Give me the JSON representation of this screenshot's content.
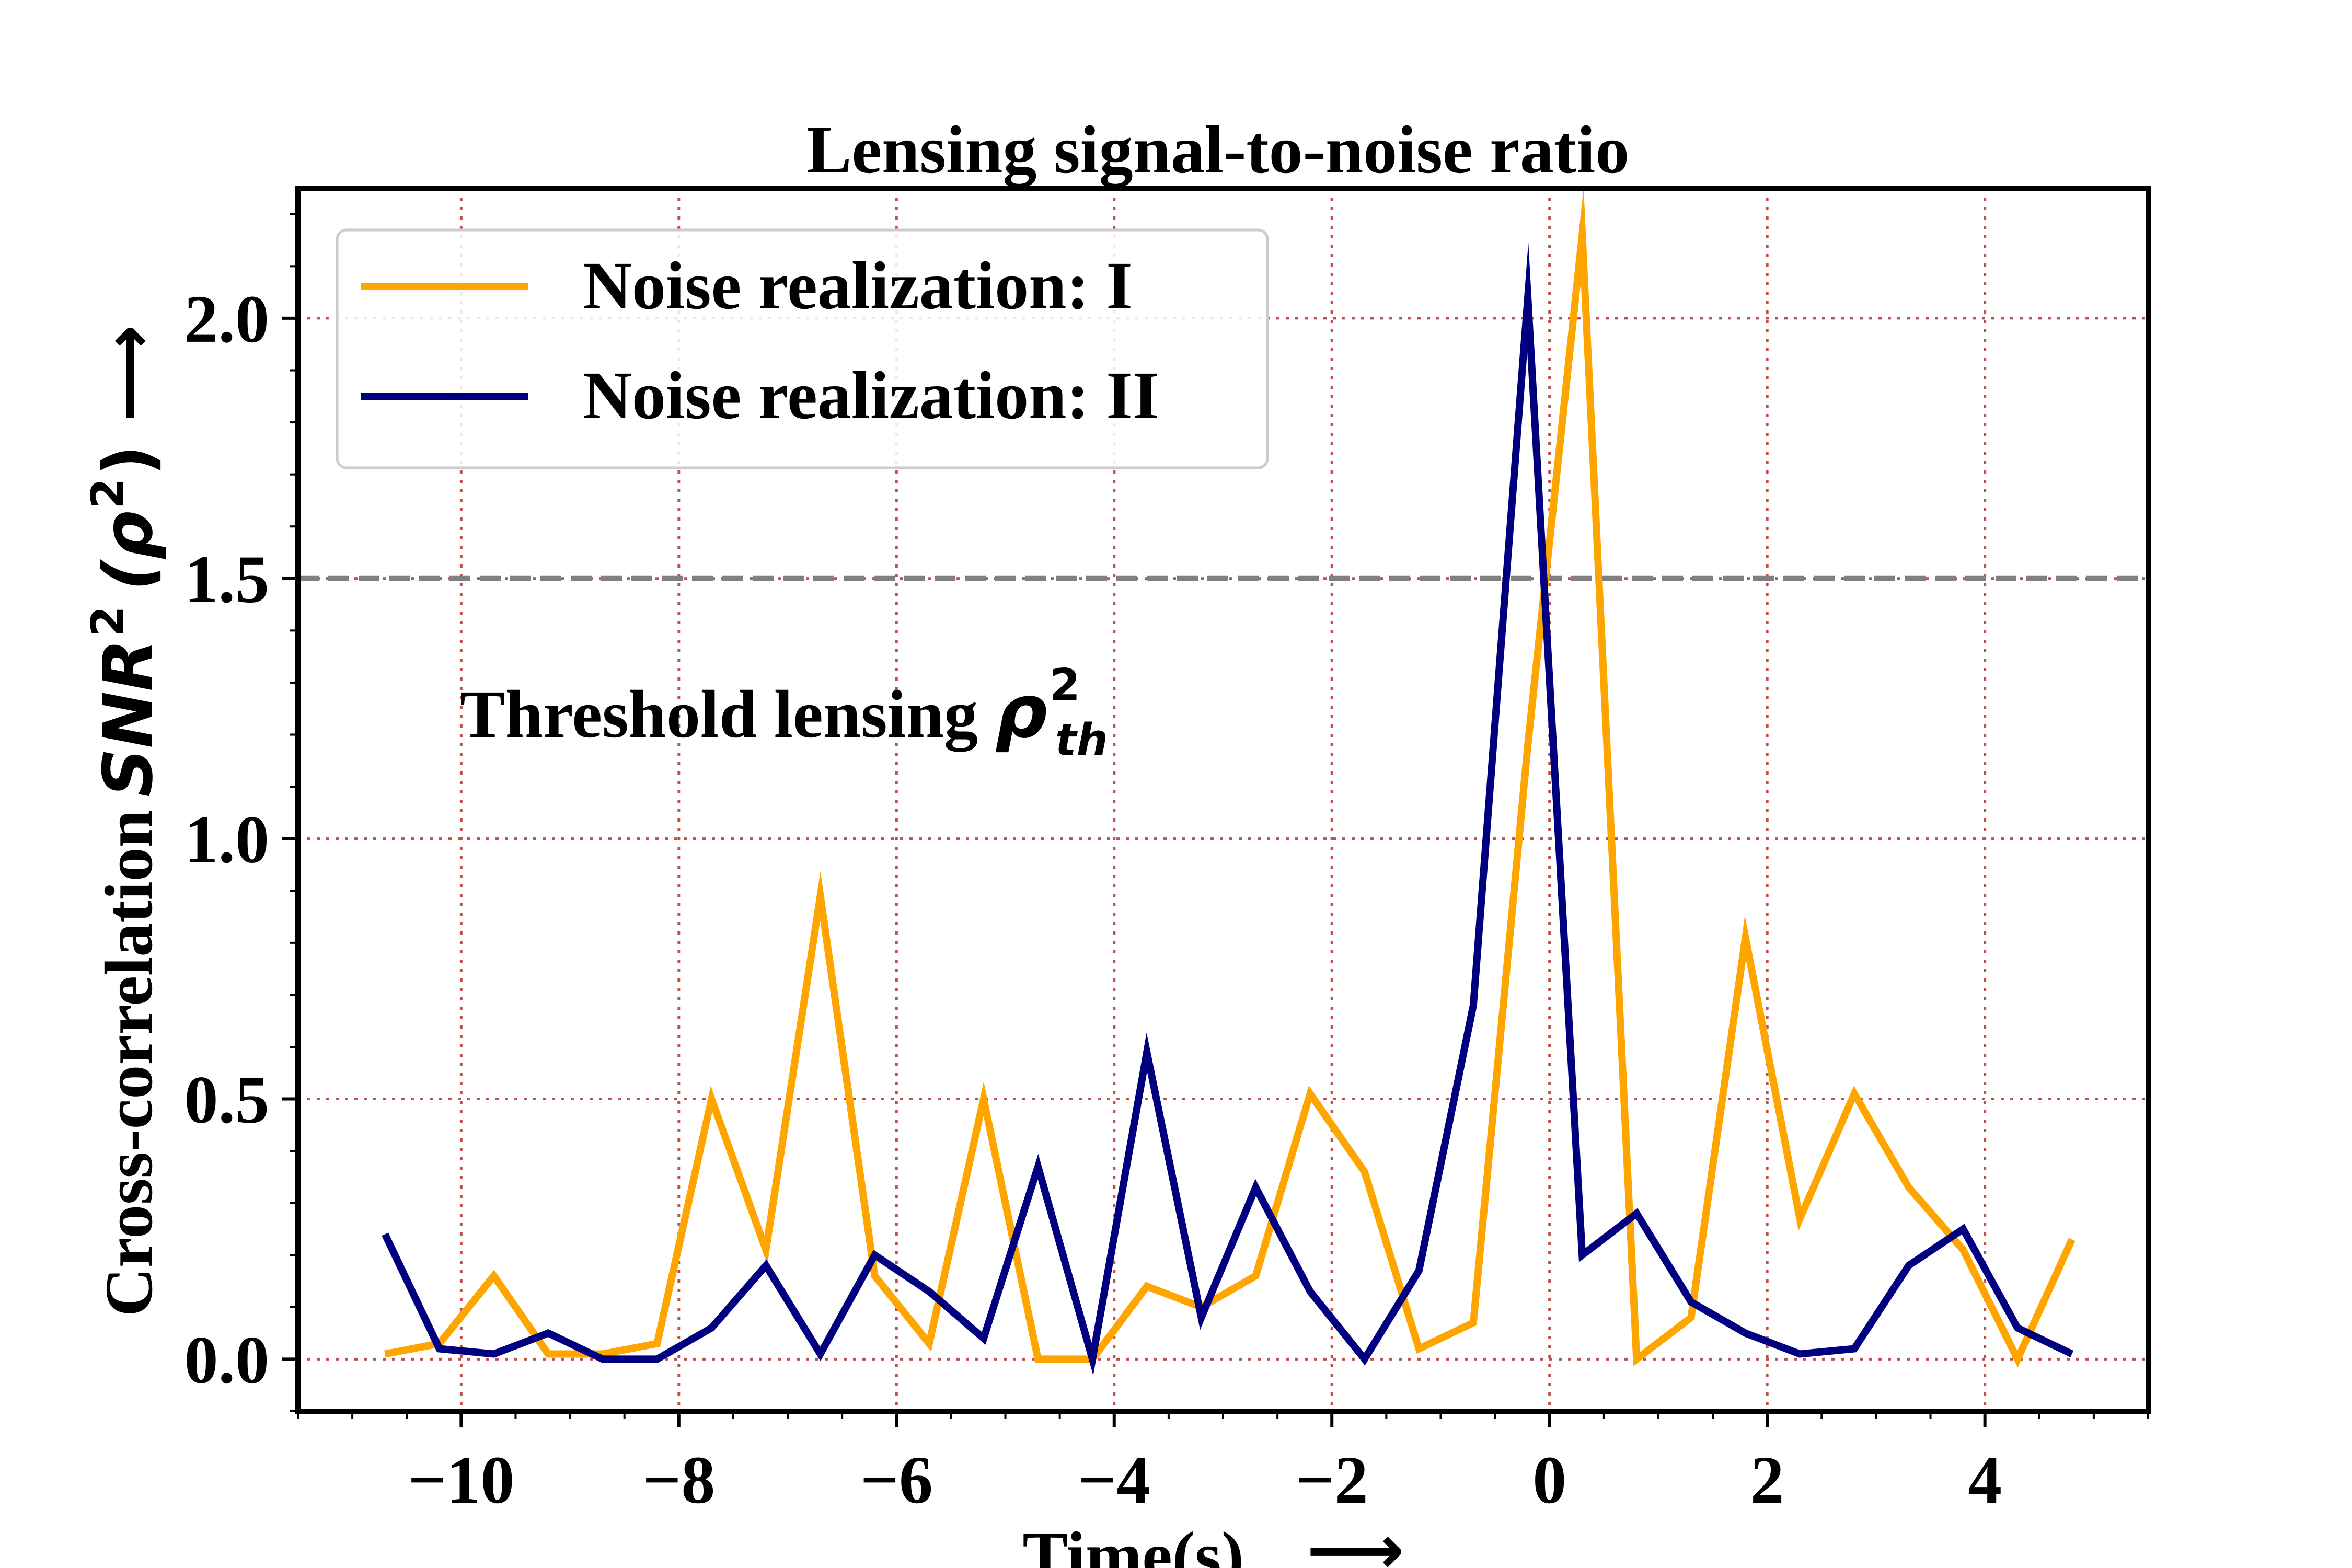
{
  "chart_data": {
    "type": "line",
    "title": "Lensing signal-to-noise ratio",
    "xlabel": "Time(s)",
    "xlabel_arrow": "⟶",
    "ylabel_prefix": "Cross-correlation",
    "ylabel_snr": "SNR",
    "ylabel_sup": "2",
    "ylabel_rho": "(ρ",
    "ylabel_rho_sup": "2",
    "ylabel_close": ")",
    "ylabel_arrow": "⟶",
    "xlim": [
      -11.5,
      5.5
    ],
    "ylim": [
      -0.1,
      2.25
    ],
    "xticks": [
      -10,
      -8,
      -6,
      -4,
      -2,
      0,
      2,
      4
    ],
    "xtick_labels": [
      "−10",
      "−8",
      "−6",
      "−4",
      "−2",
      "0",
      "2",
      "4"
    ],
    "yticks": [
      0.0,
      0.5,
      1.0,
      1.5,
      2.0
    ],
    "ytick_labels": [
      "0.0",
      "0.5",
      "1.0",
      "1.5",
      "2.0"
    ],
    "grid": true,
    "legend_position": "top-left",
    "threshold": {
      "value": 1.5,
      "label_text": "Threshold lensing ",
      "label_rho": "ρ",
      "label_sup": "2",
      "label_sub": "th",
      "color": "#808080"
    },
    "series": [
      {
        "name": "Noise realization: I",
        "color": "#FFA500",
        "x": [
          -10.7,
          -10.2,
          -9.7,
          -9.2,
          -8.7,
          -8.2,
          -7.7,
          -7.2,
          -6.7,
          -6.2,
          -5.7,
          -5.2,
          -4.7,
          -4.2,
          -3.7,
          -3.2,
          -2.7,
          -2.2,
          -1.7,
          -1.2,
          -0.7,
          -0.2,
          0.3,
          0.8,
          1.3,
          1.8,
          2.3,
          2.8,
          3.3,
          3.8,
          4.3,
          4.8
        ],
        "values": [
          0.01,
          0.03,
          0.16,
          0.01,
          0.01,
          0.03,
          0.5,
          0.21,
          0.89,
          0.16,
          0.03,
          0.5,
          0.0,
          0.0,
          0.14,
          0.1,
          0.16,
          0.51,
          0.36,
          0.02,
          0.07,
          1.18,
          2.16,
          0.0,
          0.08,
          0.81,
          0.27,
          0.51,
          0.33,
          0.21,
          0.0,
          0.23
        ]
      },
      {
        "name": "Noise realization: II",
        "color": "#00007F",
        "x": [
          -10.7,
          -10.2,
          -9.7,
          -9.2,
          -8.7,
          -8.2,
          -7.7,
          -7.2,
          -6.7,
          -6.2,
          -5.7,
          -5.2,
          -4.7,
          -4.2,
          -3.7,
          -3.2,
          -2.7,
          -2.2,
          -1.7,
          -1.2,
          -0.7,
          -0.2,
          0.3,
          0.8,
          1.3,
          1.8,
          2.3,
          2.8,
          3.3,
          3.8,
          4.3,
          4.8
        ],
        "values": [
          0.24,
          0.02,
          0.01,
          0.05,
          0.0,
          0.0,
          0.06,
          0.18,
          0.01,
          0.2,
          0.13,
          0.04,
          0.37,
          0.0,
          0.59,
          0.08,
          0.33,
          0.13,
          0.0,
          0.17,
          0.68,
          2.04,
          0.2,
          0.28,
          0.11,
          0.05,
          0.01,
          0.02,
          0.18,
          0.25,
          0.06,
          0.01
        ]
      }
    ]
  }
}
